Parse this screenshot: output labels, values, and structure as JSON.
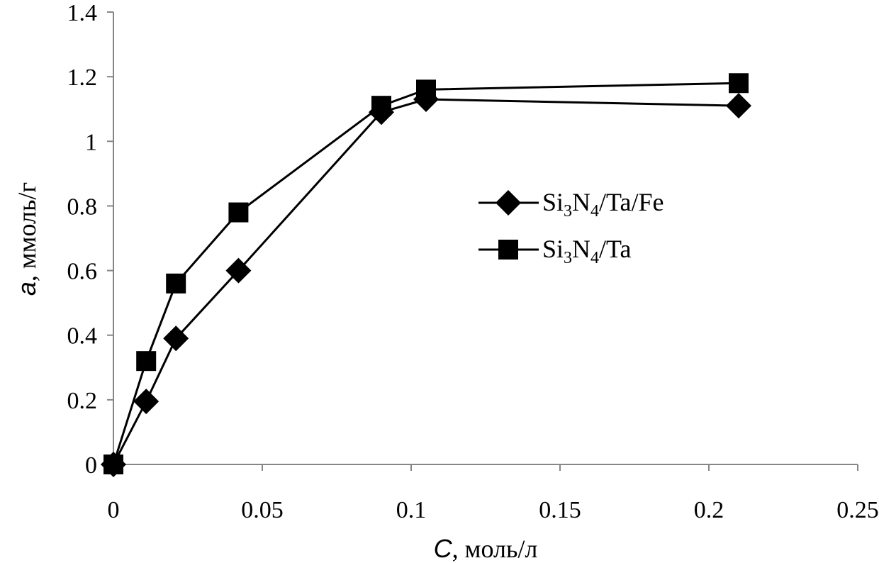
{
  "chart_data": {
    "type": "line",
    "xlabel": {
      "symbol": "C",
      "rest": ", моль/л"
    },
    "ylabel": {
      "symbol": "a",
      "rest": ", ммоль/г"
    },
    "xlim": [
      0,
      0.25
    ],
    "ylim": [
      0,
      1.4
    ],
    "x_ticks": [
      "0",
      "0.05",
      "0.1",
      "0.15",
      "0.2",
      "0.25"
    ],
    "y_ticks": [
      "0",
      "0.2",
      "0.4",
      "0.6",
      "0.8",
      "1",
      "1.2",
      "1.4"
    ],
    "grid": false,
    "legend_position": "center-right",
    "series": [
      {
        "name": "Si3N4/Ta/Fe",
        "name_parts": [
          "Si",
          "3",
          "N",
          "4",
          "/Ta/Fe"
        ],
        "marker": "diamond",
        "color": "#000000",
        "x": [
          0,
          0.011,
          0.021,
          0.042,
          0.09,
          0.105,
          0.21
        ],
        "y": [
          0,
          0.195,
          0.39,
          0.6,
          1.09,
          1.13,
          1.11
        ]
      },
      {
        "name": "Si3N4/Ta",
        "name_parts": [
          "Si",
          "3",
          "N",
          "4",
          "/Ta"
        ],
        "marker": "square",
        "color": "#000000",
        "x": [
          0,
          0.011,
          0.021,
          0.042,
          0.09,
          0.105,
          0.21
        ],
        "y": [
          0,
          0.32,
          0.56,
          0.78,
          1.11,
          1.16,
          1.18
        ]
      }
    ]
  }
}
